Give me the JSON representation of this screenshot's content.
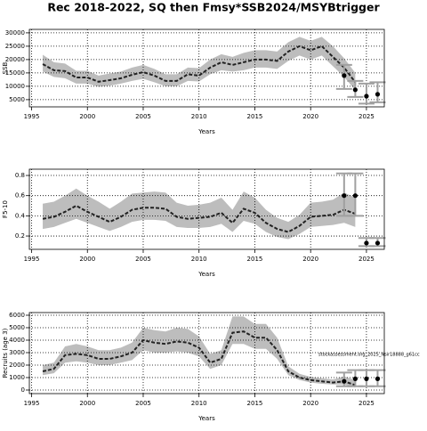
{
  "title": "Rec 2018-2022, SQ then Fmsy*SSB2024/MSYBtrigger",
  "chart_data": [
    {
      "type": "line",
      "ylabel": "SSB",
      "xlabel": "Years",
      "xlim": [
        1994.8,
        2026.6
      ],
      "xticks": [
        1995,
        2000,
        2005,
        2010,
        2015,
        2020,
        2025
      ],
      "ylim": [
        2300,
        31300
      ],
      "yticks": [
        5000,
        10000,
        15000,
        20000,
        25000,
        30000
      ],
      "grid": true,
      "line_color": "#222222",
      "band_color": "#bdbdbd",
      "point_color": "#000000",
      "errorbar_color": "#a0a0a0",
      "x": [
        1996,
        1997,
        1998,
        1999,
        2000,
        2001,
        2002,
        2003,
        2004,
        2005,
        2006,
        2007,
        2008,
        2009,
        2010,
        2011,
        2012,
        2013,
        2014,
        2015,
        2016,
        2017,
        2018,
        2019,
        2020,
        2021,
        2022,
        2023,
        2024
      ],
      "values": [
        18300,
        16000,
        15700,
        13300,
        13300,
        11700,
        12300,
        13000,
        14300,
        15300,
        14000,
        12000,
        12000,
        14500,
        14000,
        17000,
        19000,
        18000,
        19000,
        20000,
        20000,
        19500,
        23000,
        25000,
        23500,
        25000,
        21000,
        17000,
        11500
      ],
      "band_lower": [
        15500,
        13500,
        13000,
        11000,
        11000,
        9800,
        10200,
        11000,
        12000,
        12800,
        11500,
        10000,
        10000,
        12000,
        11800,
        14500,
        16000,
        15500,
        16000,
        17000,
        17000,
        16500,
        19500,
        21500,
        20000,
        21500,
        17500,
        13500,
        8500
      ],
      "band_upper": [
        21800,
        19000,
        18500,
        15800,
        15800,
        14000,
        14800,
        15500,
        17000,
        18000,
        16500,
        14500,
        14500,
        17000,
        16800,
        20000,
        22000,
        21000,
        22500,
        23500,
        23500,
        23000,
        26500,
        28500,
        27000,
        28500,
        25000,
        20500,
        15000
      ],
      "points": {
        "x": [
          2023,
          2024,
          2025,
          2026
        ],
        "values": [
          14000,
          8700,
          6300,
          7000
        ],
        "lower": [
          9000,
          6000,
          3500,
          4000
        ],
        "upper": [
          18000,
          12000,
          11000,
          11500
        ]
      }
    },
    {
      "type": "line",
      "ylabel": "F5-10",
      "xlabel": "Years",
      "xlim": [
        1994.8,
        2026.6
      ],
      "xticks": [
        1995,
        2000,
        2005,
        2010,
        2015,
        2020,
        2025
      ],
      "ylim": [
        0.068,
        0.862
      ],
      "yticks": [
        0.2,
        0.4,
        0.6,
        0.8
      ],
      "grid": true,
      "line_color": "#222222",
      "band_color": "#bdbdbd",
      "point_color": "#000000",
      "errorbar_color": "#a0a0a0",
      "x": [
        1996,
        1997,
        1998,
        1999,
        2000,
        2001,
        2002,
        2003,
        2004,
        2005,
        2006,
        2007,
        2008,
        2009,
        2010,
        2011,
        2012,
        2013,
        2014,
        2015,
        2016,
        2017,
        2018,
        2019,
        2020,
        2021,
        2022,
        2023,
        2024
      ],
      "values": [
        0.37,
        0.39,
        0.44,
        0.5,
        0.44,
        0.39,
        0.34,
        0.39,
        0.46,
        0.48,
        0.48,
        0.47,
        0.39,
        0.37,
        0.38,
        0.39,
        0.43,
        0.33,
        0.47,
        0.43,
        0.33,
        0.27,
        0.24,
        0.3,
        0.39,
        0.4,
        0.41,
        0.46,
        0.42
      ],
      "band_lower": [
        0.27,
        0.29,
        0.33,
        0.37,
        0.33,
        0.29,
        0.25,
        0.29,
        0.34,
        0.36,
        0.36,
        0.35,
        0.29,
        0.28,
        0.28,
        0.29,
        0.32,
        0.24,
        0.35,
        0.32,
        0.24,
        0.19,
        0.17,
        0.22,
        0.29,
        0.3,
        0.31,
        0.33,
        0.29
      ],
      "band_upper": [
        0.52,
        0.54,
        0.6,
        0.67,
        0.6,
        0.54,
        0.47,
        0.54,
        0.62,
        0.63,
        0.64,
        0.63,
        0.53,
        0.5,
        0.51,
        0.53,
        0.58,
        0.46,
        0.64,
        0.58,
        0.46,
        0.38,
        0.34,
        0.41,
        0.53,
        0.54,
        0.56,
        0.63,
        0.58
      ],
      "points": {
        "x": [
          2023,
          2024,
          2025,
          2026
        ],
        "values": [
          0.6,
          0.6,
          0.13,
          0.13
        ],
        "lower": [
          0.4,
          0.4,
          0.1,
          0.1
        ],
        "upper": [
          0.82,
          0.82,
          0.18,
          0.18
        ]
      }
    },
    {
      "type": "line",
      "ylabel": "Recruits (age 3)",
      "xlabel": "Years",
      "annotation": "stockassessment.org_2025_Nsir18888_g61cc",
      "xlim": [
        1994.8,
        2026.6
      ],
      "xticks": [
        1995,
        2000,
        2005,
        2010,
        2015,
        2020,
        2025
      ],
      "ylim": [
        -286,
        6214
      ],
      "yticks": [
        0,
        1000,
        2000,
        3000,
        4000,
        5000,
        6000
      ],
      "grid": true,
      "line_color": "#222222",
      "band_color": "#bdbdbd",
      "point_color": "#000000",
      "errorbar_color": "#a0a0a0",
      "x": [
        1996,
        1997,
        1998,
        1999,
        2000,
        2001,
        2002,
        2003,
        2004,
        2005,
        2006,
        2007,
        2008,
        2009,
        2010,
        2011,
        2012,
        2013,
        2014,
        2015,
        2016,
        2017,
        2018,
        2019,
        2020,
        2021,
        2022,
        2023,
        2024
      ],
      "values": [
        1500,
        1700,
        2800,
        2900,
        2800,
        2500,
        2500,
        2700,
        3000,
        4000,
        3800,
        3700,
        3900,
        3800,
        3400,
        2200,
        2500,
        4600,
        4700,
        4200,
        4200,
        3200,
        1500,
        1000,
        800,
        700,
        600,
        700,
        400
      ],
      "band_lower": [
        1200,
        1350,
        2200,
        2300,
        2200,
        2000,
        2000,
        2200,
        2400,
        3200,
        3000,
        3000,
        3100,
        3000,
        2700,
        1700,
        2000,
        3700,
        3700,
        3300,
        3300,
        2500,
        1200,
        800,
        600,
        500,
        450,
        450,
        200
      ],
      "band_upper": [
        2000,
        2200,
        3500,
        3700,
        3500,
        3200,
        3200,
        3400,
        3800,
        5000,
        4800,
        4700,
        5000,
        4900,
        4300,
        2900,
        3200,
        5900,
        5900,
        5300,
        5300,
        4200,
        1900,
        1300,
        1050,
        950,
        850,
        1100,
        800
      ],
      "points": {
        "x": [
          2023,
          2024,
          2025,
          2026
        ],
        "values": [
          700,
          900,
          900,
          900
        ],
        "lower": [
          300,
          300,
          300,
          300
        ],
        "upper": [
          1400,
          1600,
          1600,
          1600
        ]
      }
    }
  ]
}
